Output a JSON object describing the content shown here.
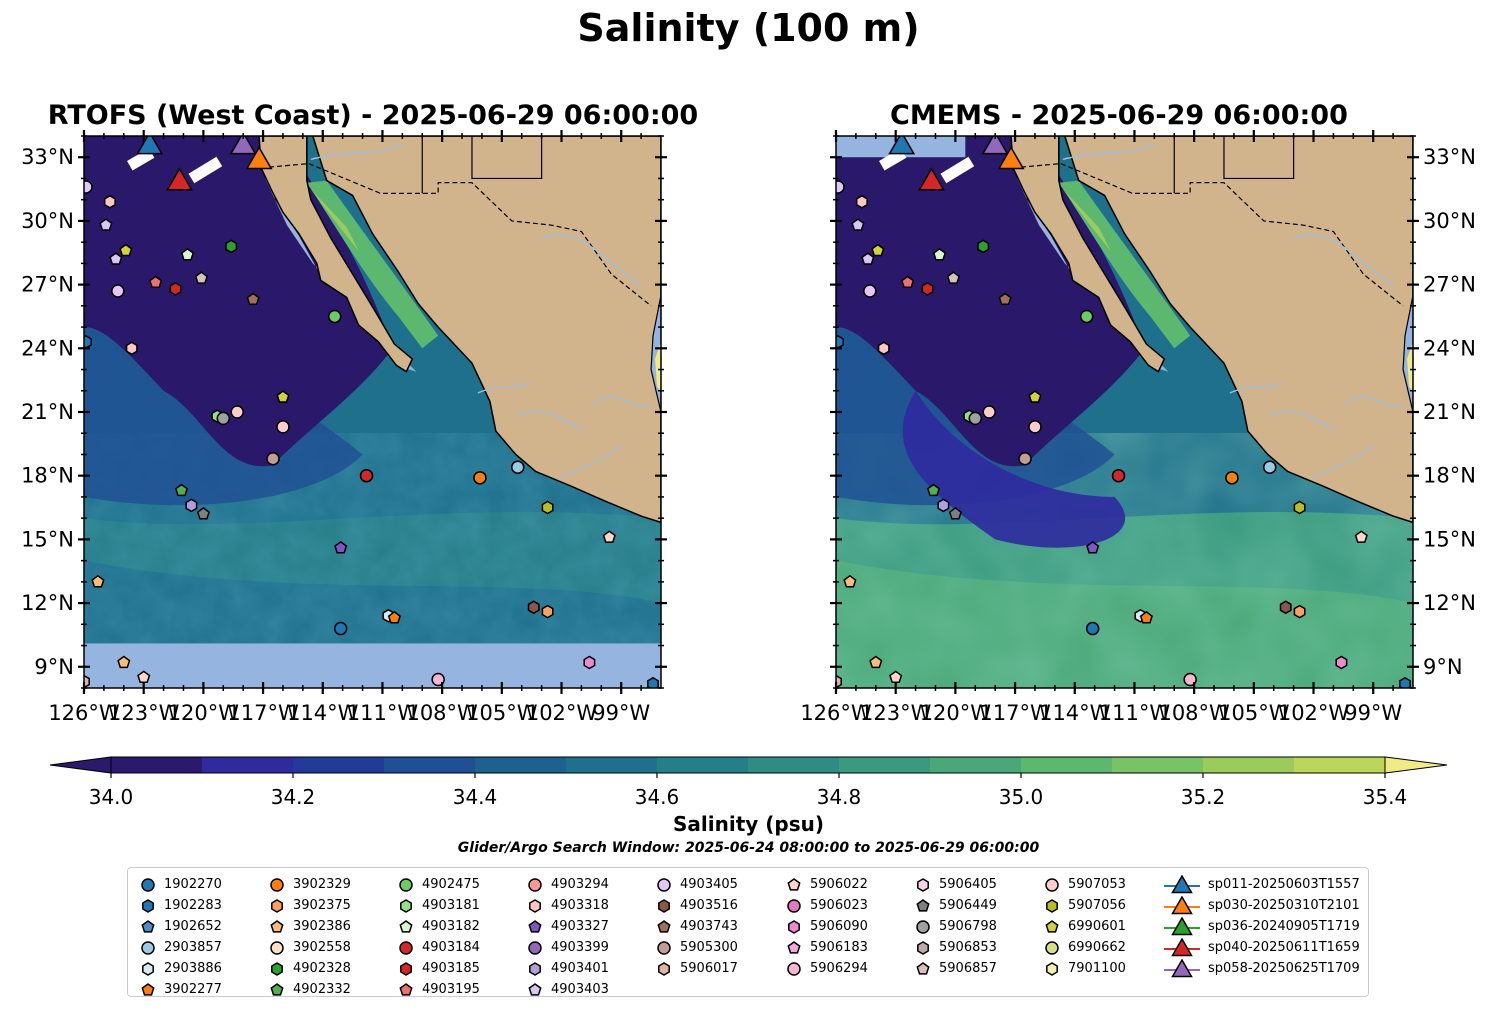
{
  "suptitle": "Salinity (100 m)",
  "panels": [
    {
      "title": "RTOFS (West Coast) - 2025-06-29 06:00:00"
    },
    {
      "title": "CMEMS - 2025-06-29 06:00:00"
    }
  ],
  "axes": {
    "lon_ticks": [
      "126°W",
      "123°W",
      "120°W",
      "117°W",
      "114°W",
      "111°W",
      "108°W",
      "105°W",
      "102°W",
      "99°W"
    ],
    "lat_ticks": [
      "9°N",
      "12°N",
      "15°N",
      "18°N",
      "21°N",
      "24°N",
      "27°N",
      "30°N",
      "33°N"
    ],
    "lon_range": [
      -126,
      -97
    ],
    "lat_range": [
      8,
      34
    ]
  },
  "colorbar": {
    "label": "Salinity (psu)",
    "ticks": [
      "34.0",
      "34.2",
      "34.4",
      "34.6",
      "34.8",
      "35.0",
      "35.2",
      "35.4"
    ],
    "range": [
      34.0,
      35.4
    ],
    "extend": "both",
    "colors": [
      "#2b1a6b",
      "#2f2a9e",
      "#223b98",
      "#1f4f94",
      "#1d6190",
      "#1f708c",
      "#267e88",
      "#2f8c84",
      "#3a9a7f",
      "#4aa878",
      "#5db86f",
      "#78c464",
      "#9acc5b",
      "#bcd65a",
      "#f2ea85"
    ]
  },
  "colors": {
    "land": "#d2b48c",
    "deep_ocean": "#2a186a",
    "mid_ocean": "#22698e",
    "shelf_mask": "#95b4e0"
  },
  "search_window": "Glider/Argo Search Window: 2025-06-24 08:00:00 to 2025-06-29 06:00:00",
  "legend": {
    "columns": [
      [
        {
          "label": "1902270",
          "marker": "circle",
          "color": "#1f77b4"
        },
        {
          "label": "1902283",
          "marker": "hexagon",
          "color": "#1f77b4"
        },
        {
          "label": "1902652",
          "marker": "pentagon",
          "color": "#4c8fc4"
        },
        {
          "label": "2903857",
          "marker": "circle",
          "color": "#9ecae1"
        },
        {
          "label": "2903886",
          "marker": "hexagon",
          "color": "#d6eaf8"
        },
        {
          "label": "3902277",
          "marker": "pentagon",
          "color": "#ff7f0e"
        }
      ],
      [
        {
          "label": "3902329",
          "marker": "circle",
          "color": "#ff7f0e"
        },
        {
          "label": "3902375",
          "marker": "hexagon",
          "color": "#ffa060"
        },
        {
          "label": "3902386",
          "marker": "pentagon",
          "color": "#ffbb78"
        },
        {
          "label": "3902558",
          "marker": "circle",
          "color": "#ffe0c2"
        },
        {
          "label": "4902328",
          "marker": "hexagon",
          "color": "#2ca02c"
        },
        {
          "label": "4902332",
          "marker": "pentagon",
          "color": "#50b050"
        }
      ],
      [
        {
          "label": "4902475",
          "marker": "circle",
          "color": "#6acc64"
        },
        {
          "label": "4903181",
          "marker": "hexagon",
          "color": "#98df8a"
        },
        {
          "label": "4903182",
          "marker": "pentagon",
          "color": "#d8f8d0"
        },
        {
          "label": "4903184",
          "marker": "circle",
          "color": "#d62728"
        },
        {
          "label": "4903185",
          "marker": "hexagon",
          "color": "#d62728"
        },
        {
          "label": "4903195",
          "marker": "pentagon",
          "color": "#f07070"
        }
      ],
      [
        {
          "label": "4903294",
          "marker": "circle",
          "color": "#ff9896"
        },
        {
          "label": "4903318",
          "marker": "hexagon",
          "color": "#ffc6c4"
        },
        {
          "label": "4903327",
          "marker": "pentagon",
          "color": "#7e57c2"
        },
        {
          "label": "4903399",
          "marker": "circle",
          "color": "#9467bd"
        },
        {
          "label": "4903401",
          "marker": "hexagon",
          "color": "#b39ddb"
        },
        {
          "label": "4903403",
          "marker": "pentagon",
          "color": "#d9c6f5"
        }
      ],
      [
        {
          "label": "4903405",
          "marker": "circle",
          "color": "#e0c8f8"
        },
        {
          "label": "4903516",
          "marker": "hexagon",
          "color": "#8c564b"
        },
        {
          "label": "4903743",
          "marker": "pentagon",
          "color": "#a0705e"
        },
        {
          "label": "5905300",
          "marker": "circle",
          "color": "#c49c94"
        },
        {
          "label": "5906017",
          "marker": "hexagon",
          "color": "#e0b4a8"
        }
      ],
      [
        {
          "label": "5906022",
          "marker": "pentagon",
          "color": "#ffd8c8"
        },
        {
          "label": "5906023",
          "marker": "circle",
          "color": "#e377c2"
        },
        {
          "label": "5906090",
          "marker": "hexagon",
          "color": "#ee88d0"
        },
        {
          "label": "5906183",
          "marker": "pentagon",
          "color": "#f7a6dc"
        },
        {
          "label": "5906294",
          "marker": "circle",
          "color": "#f7b6d2"
        }
      ],
      [
        {
          "label": "5906405",
          "marker": "hexagon",
          "color": "#fad0ea"
        },
        {
          "label": "5906449",
          "marker": "pentagon",
          "color": "#7f7f7f"
        },
        {
          "label": "5906798",
          "marker": "circle",
          "color": "#a0a0a0"
        },
        {
          "label": "5906853",
          "marker": "hexagon",
          "color": "#c0aaa8"
        },
        {
          "label": "5906857",
          "marker": "pentagon",
          "color": "#d8c0bc"
        }
      ],
      [
        {
          "label": "5907053",
          "marker": "circle",
          "color": "#ffcccc"
        },
        {
          "label": "5907056",
          "marker": "hexagon",
          "color": "#bcbd22"
        },
        {
          "label": "6990601",
          "marker": "pentagon",
          "color": "#d0d040"
        },
        {
          "label": "6990662",
          "marker": "circle",
          "color": "#dbdb8d"
        },
        {
          "label": "7901100",
          "marker": "hexagon",
          "color": "#f2f2a8"
        }
      ],
      [
        {
          "label": "sp011-20250603T1557",
          "marker": "triangle",
          "color": "#1f77b4"
        },
        {
          "label": "sp030-20250310T2101",
          "marker": "triangle",
          "color": "#ff7f0e"
        },
        {
          "label": "sp036-20240905T1719",
          "marker": "triangle",
          "color": "#2ca02c"
        },
        {
          "label": "sp040-20250611T1659",
          "marker": "triangle",
          "color": "#d62728"
        },
        {
          "label": "sp058-20250625T1709",
          "marker": "triangle",
          "color": "#9467bd"
        }
      ]
    ]
  },
  "floats": [
    {
      "id": "1902283",
      "lon": -125.9,
      "lat": 24.3
    },
    {
      "id": "4903405",
      "lon": -125.9,
      "lat": 31.6
    },
    {
      "id": "3902386",
      "lon": -125.3,
      "lat": 13.0
    },
    {
      "id": "4903403",
      "lon": -124.9,
      "lat": 29.8
    },
    {
      "id": "4903318",
      "lon": -124.7,
      "lat": 30.9
    },
    {
      "id": "4903405",
      "lon": -124.3,
      "lat": 26.7
    },
    {
      "id": "4903403",
      "lon": -124.4,
      "lat": 28.2
    },
    {
      "id": "6990601",
      "lon": -123.9,
      "lat": 28.6
    },
    {
      "id": "3902386",
      "lon": -124.0,
      "lat": 9.2
    },
    {
      "id": "4903318",
      "lon": -123.6,
      "lat": 24.0
    },
    {
      "id": "5906022",
      "lon": -123.0,
      "lat": 8.5
    },
    {
      "id": "4903195",
      "lon": -122.4,
      "lat": 27.1
    },
    {
      "id": "4903185",
      "lon": -121.4,
      "lat": 26.8
    },
    {
      "id": "4903182",
      "lon": -120.8,
      "lat": 28.4
    },
    {
      "id": "5906857",
      "lon": -120.1,
      "lat": 27.3
    },
    {
      "id": "4902332",
      "lon": -121.1,
      "lat": 17.3
    },
    {
      "id": "4903401",
      "lon": -120.6,
      "lat": 16.6
    },
    {
      "id": "5906449",
      "lon": -120.0,
      "lat": 16.2
    },
    {
      "id": "4903181",
      "lon": -119.3,
      "lat": 20.8
    },
    {
      "id": "5906798",
      "lon": -119.0,
      "lat": 20.7
    },
    {
      "id": "5907053",
      "lon": -118.3,
      "lat": 21.0
    },
    {
      "id": "4902328",
      "lon": -118.6,
      "lat": 28.8
    },
    {
      "id": "4903743",
      "lon": -117.5,
      "lat": 26.3
    },
    {
      "id": "6990601",
      "lon": -116.0,
      "lat": 21.7
    },
    {
      "id": "5907053",
      "lon": -116.0,
      "lat": 20.3
    },
    {
      "id": "5905300",
      "lon": -116.5,
      "lat": 18.8
    },
    {
      "id": "4902475",
      "lon": -113.4,
      "lat": 25.5
    },
    {
      "id": "4903327",
      "lon": -113.1,
      "lat": 14.6
    },
    {
      "id": "4903184",
      "lon": -111.8,
      "lat": 18.0
    },
    {
      "id": "1902270",
      "lon": -113.1,
      "lat": 10.8
    },
    {
      "id": "2903886",
      "lon": -110.7,
      "lat": 11.4
    },
    {
      "id": "3902277",
      "lon": -110.4,
      "lat": 11.3
    },
    {
      "id": "5906294",
      "lon": -108.2,
      "lat": 8.4
    },
    {
      "id": "3902329",
      "lon": -106.1,
      "lat": 17.9
    },
    {
      "id": "2903857",
      "lon": -104.2,
      "lat": 18.4
    },
    {
      "id": "4903516",
      "lon": -103.4,
      "lat": 11.8
    },
    {
      "id": "5907056",
      "lon": -102.7,
      "lat": 16.5
    },
    {
      "id": "3902375",
      "lon": -102.7,
      "lat": 11.6
    },
    {
      "id": "5906022",
      "lon": -99.6,
      "lat": 15.1
    },
    {
      "id": "5906090",
      "lon": -100.6,
      "lat": 9.2
    },
    {
      "id": "1902283",
      "lon": -97.4,
      "lat": 8.2
    },
    {
      "id": "5906017",
      "lon": -126.0,
      "lat": 8.3
    }
  ],
  "gliders": [
    {
      "id": "sp011-20250603T1557",
      "lon": -122.7,
      "lat": 33.5
    },
    {
      "id": "sp058-20250625T1709",
      "lon": -118.0,
      "lat": 33.5
    },
    {
      "id": "sp030-20250310T2101",
      "lon": -117.2,
      "lat": 32.8
    },
    {
      "id": "sp040-20250611T1659",
      "lon": -121.2,
      "lat": 31.8
    }
  ],
  "glider_tracks": [
    {
      "lon": [
        -123.7,
        -122.6
      ],
      "lat": [
        32.6,
        33.2
      ]
    },
    {
      "lon": [
        -120.6,
        -119.2
      ],
      "lat": [
        32.0,
        32.8
      ]
    }
  ]
}
